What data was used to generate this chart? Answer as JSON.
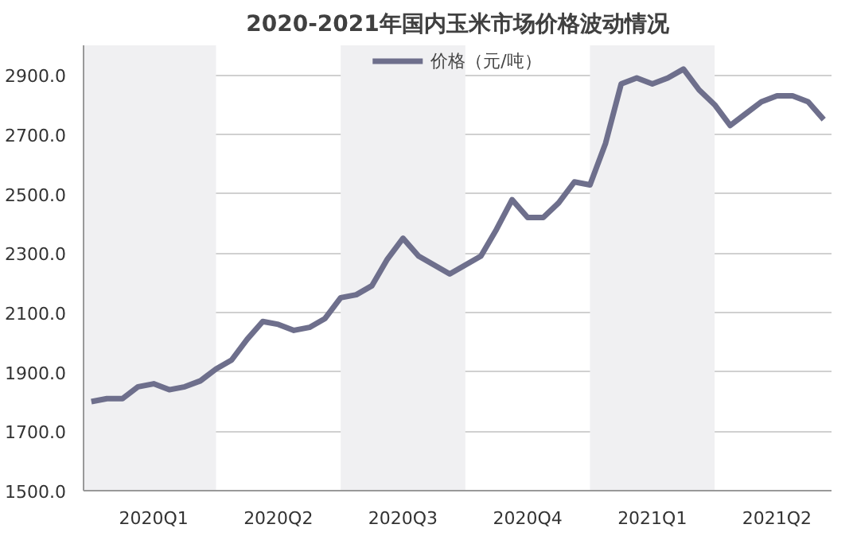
{
  "chart_data": {
    "type": "line",
    "title": "2020-2021年国内玉米市场价格波动情况",
    "categories": [
      null,
      null,
      null,
      null,
      "2020Q1",
      null,
      null,
      null,
      null,
      null,
      null,
      null,
      "2020Q2",
      null,
      null,
      null,
      null,
      null,
      null,
      null,
      "2020Q3",
      null,
      null,
      null,
      null,
      null,
      null,
      null,
      "2020Q4",
      null,
      null,
      null,
      null,
      null,
      null,
      null,
      "2021Q1",
      null,
      null,
      null,
      null,
      null,
      null,
      null,
      "2021Q2",
      null,
      null,
      null
    ],
    "series": [
      {
        "name": "价格（元/吨）",
        "color": "#6e6f8c",
        "values": [
          1800,
          1810,
          1810,
          1850,
          1860,
          1840,
          1850,
          1870,
          1910,
          1940,
          2010,
          2070,
          2060,
          2040,
          2050,
          2080,
          2150,
          2160,
          2190,
          2280,
          2350,
          2290,
          2260,
          2230,
          2260,
          2290,
          2380,
          2480,
          2420,
          2420,
          2470,
          2540,
          2530,
          2670,
          2870,
          2890,
          2870,
          2890,
          2920,
          2850,
          2800,
          2730,
          2770,
          2810,
          2830,
          2830,
          2810,
          2750
        ]
      }
    ],
    "ylim": [
      1500,
      3000
    ],
    "yticks": [
      {
        "value": 1500,
        "label": "1500.0"
      },
      {
        "value": 1700,
        "label": "1700.0"
      },
      {
        "value": 1900,
        "label": "1900.0"
      },
      {
        "value": 2100,
        "label": "2100.0"
      },
      {
        "value": 2300,
        "label": "2300.0"
      },
      {
        "value": 2500,
        "label": "2500.0"
      },
      {
        "value": 2700,
        "label": "2700.0"
      },
      {
        "value": 2900,
        "label": "2900.0"
      }
    ],
    "grid": "y",
    "legend": "top",
    "marker": "none",
    "line_style": "solid"
  }
}
